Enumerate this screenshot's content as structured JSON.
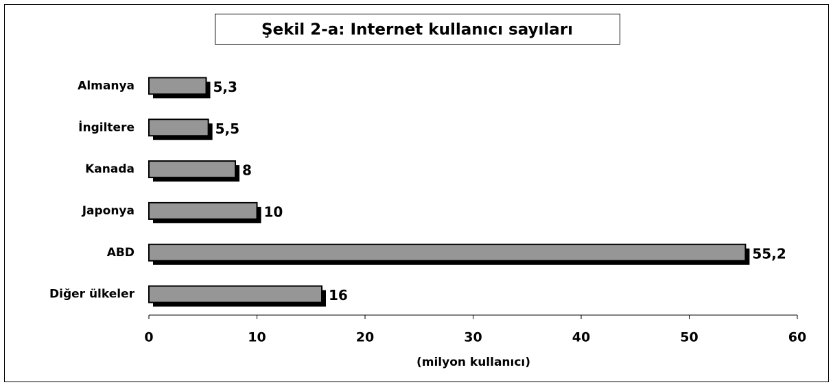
{
  "chart_data": {
    "type": "bar",
    "orientation": "horizontal",
    "title": "Şekil 2-a: Internet kullanıcı sayıları",
    "x_label": "(milyon kullanıcı)",
    "categories": [
      "Almanya",
      "İngiltere",
      "Kanada",
      "Japonya",
      "ABD",
      "Diğer ülkeler"
    ],
    "values": [
      5.3,
      5.5,
      8,
      10,
      55.2,
      16
    ],
    "value_labels": [
      "5,3",
      "5,5",
      "8",
      "10",
      "55,2",
      "16"
    ],
    "color": "#969696",
    "xlim": [
      0,
      60
    ],
    "xticks": [
      0,
      10,
      20,
      30,
      40,
      50,
      60
    ]
  }
}
